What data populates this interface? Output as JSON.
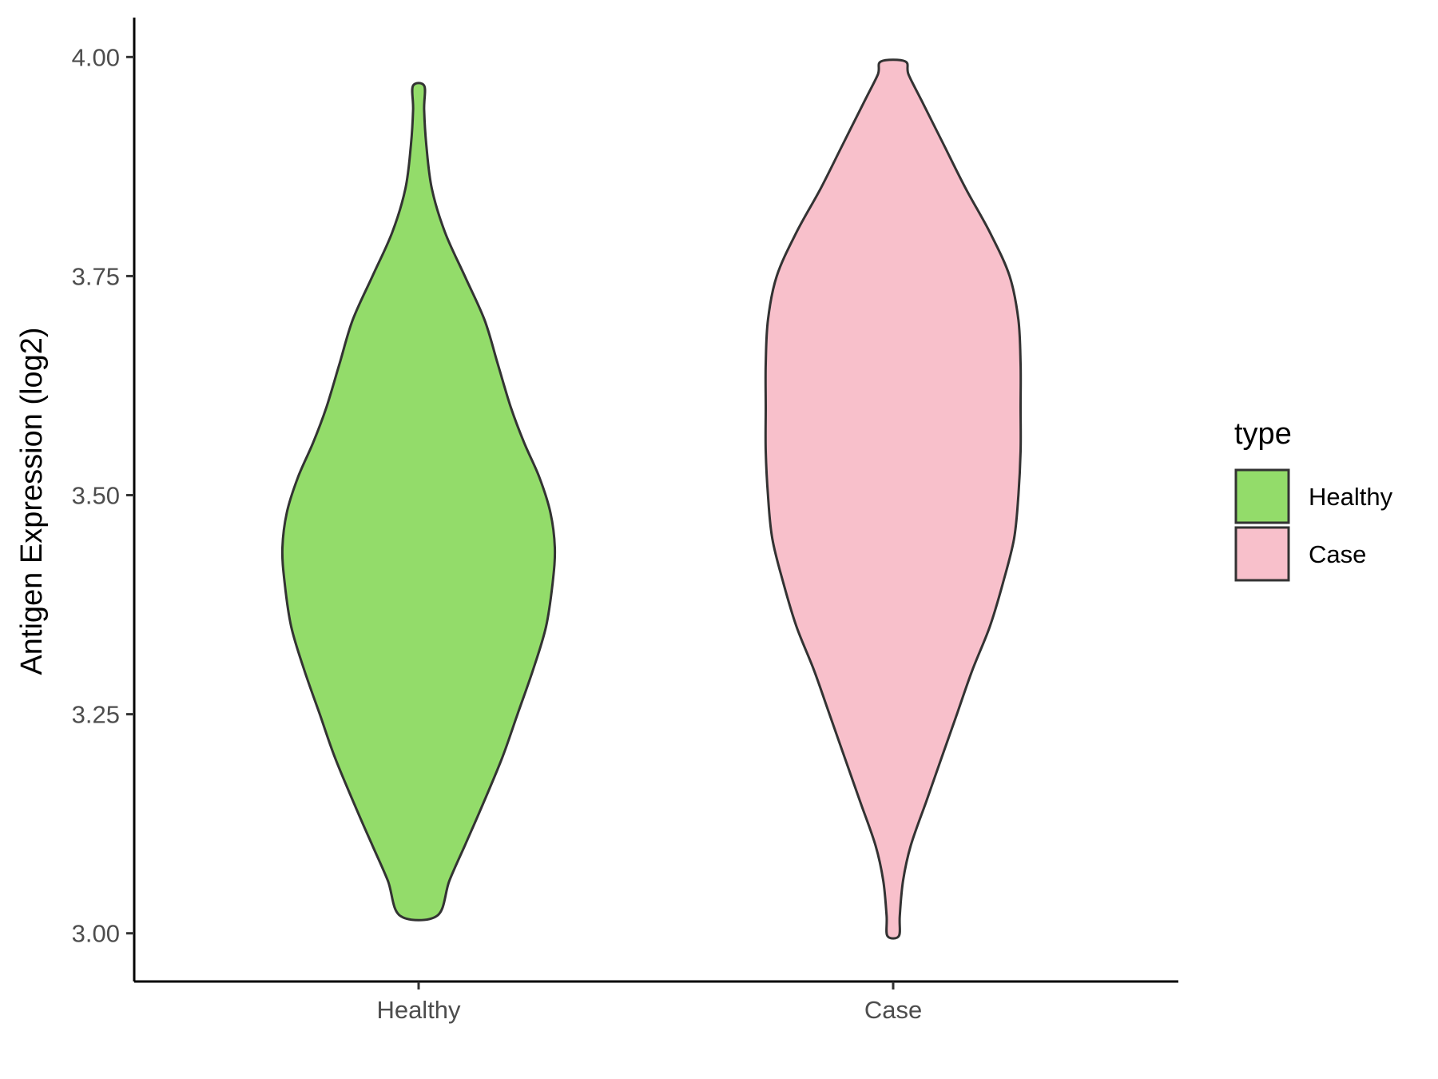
{
  "chart_data": {
    "type": "violin",
    "ylabel": "Antigen Expression (log2)",
    "xlabel": "",
    "categories": [
      "Healthy",
      "Case"
    ],
    "ylim": [
      2.945,
      4.045
    ],
    "yticks": [
      3.0,
      3.25,
      3.5,
      3.75,
      4.0
    ],
    "ytick_labels": [
      "3.00",
      "3.25",
      "3.50",
      "3.75",
      "4.00"
    ],
    "legend": {
      "title": "type",
      "position": "right",
      "entries": [
        "Healthy",
        "Case"
      ]
    },
    "colors": {
      "Healthy": "#93dc6a",
      "Case": "#f8c0cb",
      "outline": "#333333"
    },
    "series": [
      {
        "category": "Healthy",
        "min": 3.02,
        "max": 3.967,
        "profile": [
          [
            3.02,
            0.084
          ],
          [
            3.06,
            0.14
          ],
          [
            3.1,
            0.21
          ],
          [
            3.14,
            0.28
          ],
          [
            3.2,
            0.38
          ],
          [
            3.25,
            0.45
          ],
          [
            3.3,
            0.52
          ],
          [
            3.35,
            0.58
          ],
          [
            3.4,
            0.61
          ],
          [
            3.44,
            0.62
          ],
          [
            3.48,
            0.6
          ],
          [
            3.52,
            0.55
          ],
          [
            3.56,
            0.48
          ],
          [
            3.6,
            0.42
          ],
          [
            3.65,
            0.36
          ],
          [
            3.7,
            0.3
          ],
          [
            3.75,
            0.21
          ],
          [
            3.8,
            0.12
          ],
          [
            3.85,
            0.06
          ],
          [
            3.9,
            0.035
          ],
          [
            3.94,
            0.025
          ],
          [
            3.967,
            0.026
          ]
        ]
      },
      {
        "category": "Case",
        "min": 2.997,
        "max": 3.995,
        "profile": [
          [
            2.997,
            0.026
          ],
          [
            3.02,
            0.03
          ],
          [
            3.06,
            0.045
          ],
          [
            3.1,
            0.08
          ],
          [
            3.15,
            0.15
          ],
          [
            3.2,
            0.22
          ],
          [
            3.25,
            0.29
          ],
          [
            3.3,
            0.36
          ],
          [
            3.35,
            0.44
          ],
          [
            3.4,
            0.5
          ],
          [
            3.45,
            0.55
          ],
          [
            3.5,
            0.57
          ],
          [
            3.55,
            0.58
          ],
          [
            3.6,
            0.58
          ],
          [
            3.65,
            0.58
          ],
          [
            3.7,
            0.57
          ],
          [
            3.75,
            0.53
          ],
          [
            3.8,
            0.44
          ],
          [
            3.85,
            0.33
          ],
          [
            3.9,
            0.23
          ],
          [
            3.95,
            0.13
          ],
          [
            3.98,
            0.07
          ],
          [
            3.995,
            0.055
          ]
        ]
      }
    ]
  }
}
